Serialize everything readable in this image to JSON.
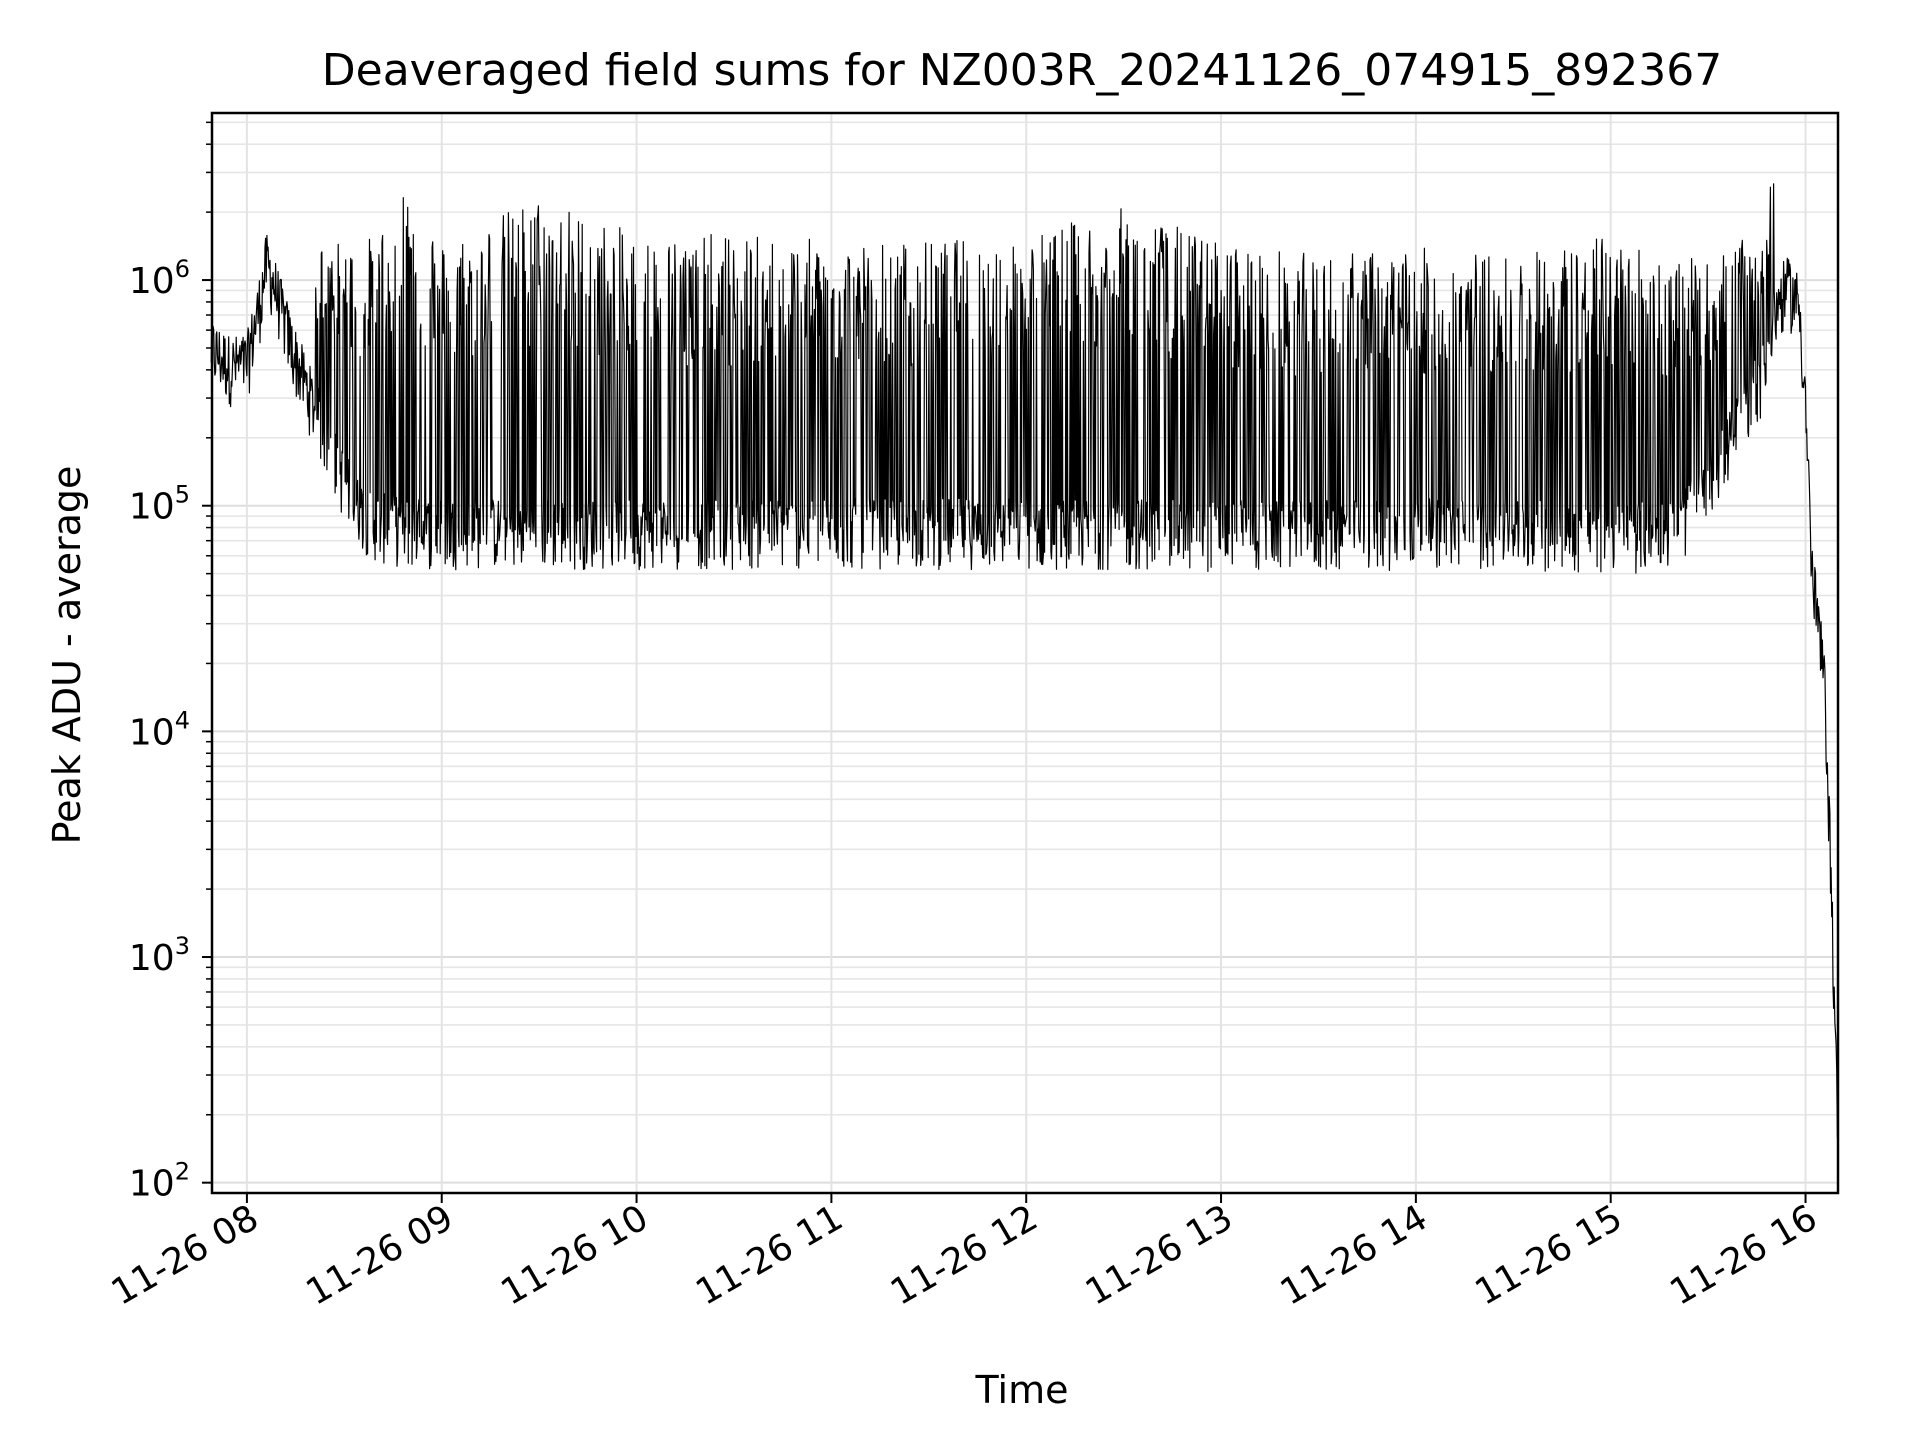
{
  "chart_data": {
    "type": "line",
    "title": "Deaveraged field sums for NZ003R_20241126_074915_892367",
    "xlabel": "Time",
    "ylabel": "Peak ADU - average",
    "x_scale": "time",
    "y_scale": "log",
    "xlim": [
      "2024-11-26T07:49:15",
      "2024-11-26T16:10:00"
    ],
    "ylim": [
      90,
      5500000
    ],
    "xticks": [
      {
        "label": "11-26 08",
        "time": "2024-11-26T08:00"
      },
      {
        "label": "11-26 09",
        "time": "2024-11-26T09:00"
      },
      {
        "label": "11-26 10",
        "time": "2024-11-26T10:00"
      },
      {
        "label": "11-26 11",
        "time": "2024-11-26T11:00"
      },
      {
        "label": "11-26 12",
        "time": "2024-11-26T12:00"
      },
      {
        "label": "11-26 13",
        "time": "2024-11-26T13:00"
      },
      {
        "label": "11-26 14",
        "time": "2024-11-26T14:00"
      },
      {
        "label": "11-26 15",
        "time": "2024-11-26T15:00"
      },
      {
        "label": "11-26 16",
        "time": "2024-11-26T16:00"
      }
    ],
    "yticks": [
      {
        "base": "10",
        "exp": "2",
        "value": 100
      },
      {
        "base": "10",
        "exp": "3",
        "value": 1000
      },
      {
        "base": "10",
        "exp": "4",
        "value": 10000
      },
      {
        "base": "10",
        "exp": "5",
        "value": 100000
      },
      {
        "base": "10",
        "exp": "6",
        "value": 1000000
      }
    ],
    "grid": true,
    "line_color": "#000000",
    "series": [
      {
        "x": [
          "2024-11-26T07:49",
          "2024-11-26T07:55",
          "2024-11-26T08:00",
          "2024-11-26T08:04",
          "2024-11-26T08:06",
          "2024-11-26T08:08",
          "2024-11-26T08:10",
          "2024-11-26T08:14",
          "2024-11-26T08:18",
          "2024-11-26T08:22",
          "2024-11-26T08:28",
          "2024-11-26T08:34",
          "2024-11-26T08:40",
          "2024-11-26T08:50",
          "2024-11-26T09:00",
          "2024-11-26T09:30",
          "2024-11-26T10:00",
          "2024-11-26T10:30",
          "2024-11-26T11:00",
          "2024-11-26T11:30",
          "2024-11-26T12:00",
          "2024-11-26T12:30",
          "2024-11-26T13:00",
          "2024-11-26T13:30",
          "2024-11-26T14:00",
          "2024-11-26T14:30",
          "2024-11-26T15:00",
          "2024-11-26T15:20",
          "2024-11-26T15:30",
          "2024-11-26T15:40",
          "2024-11-26T15:45",
          "2024-11-26T15:48",
          "2024-11-26T15:50",
          "2024-11-26T15:54",
          "2024-11-26T15:58",
          "2024-11-26T16:00",
          "2024-11-26T16:02",
          "2024-11-26T16:04",
          "2024-11-26T16:06",
          "2024-11-26T16:08",
          "2024-11-26T16:10"
        ],
        "y_baseline": [
          500000,
          420000,
          430000,
          800000,
          1200000,
          1000000,
          800000,
          500000,
          350000,
          250000,
          150000,
          100000,
          85000,
          80000,
          80000,
          80000,
          80000,
          80000,
          80000,
          80000,
          80000,
          80000,
          78000,
          78000,
          80000,
          80000,
          75000,
          80000,
          120000,
          250000,
          350000,
          420000,
          700000,
          950000,
          800000,
          300000,
          50000,
          30000,
          15000,
          2000,
          150
        ],
        "y_peaks": [
          650000,
          650000,
          450000,
          1500000,
          2000000,
          1600000,
          1200000,
          650000,
          400000,
          1500000,
          1500000,
          1500000,
          1600000,
          3100000,
          1500000,
          2400000,
          1600000,
          1600000,
          1500000,
          1500000,
          1600000,
          2100000,
          1500000,
          1300000,
          1400000,
          1300000,
          1600000,
          1300000,
          1200000,
          1500000,
          1500000,
          1800000,
          3300000,
          1300000,
          1000000,
          450000,
          110000,
          50000,
          20000,
          5000,
          200
        ]
      }
    ]
  }
}
